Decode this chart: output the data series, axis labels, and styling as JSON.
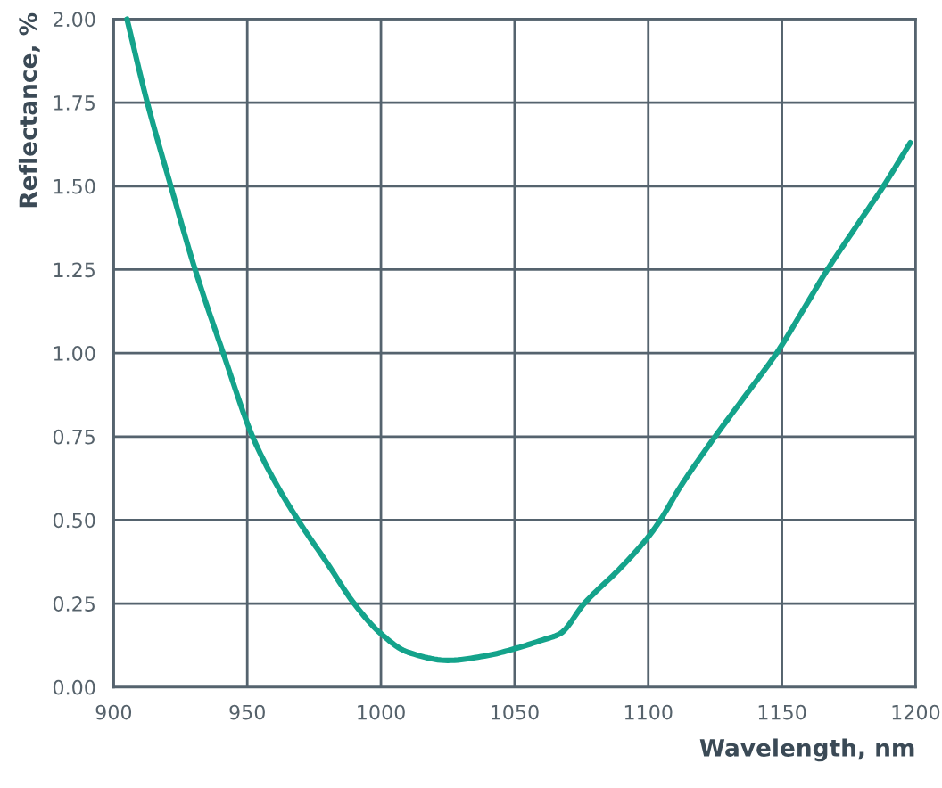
{
  "chart_data": {
    "type": "line",
    "xlabel": "Wavelength, nm",
    "ylabel": "Reflectance, %",
    "x": [
      905,
      912.6,
      921.4,
      930.5,
      941,
      952,
      960,
      969,
      980,
      990,
      1000,
      1010,
      1025,
      1040,
      1050,
      1060,
      1067,
      1076,
      1090,
      1100,
      1104.5,
      1112,
      1125,
      1137,
      1148,
      1158,
      1167,
      1177,
      1188,
      1198
    ],
    "series": [
      {
        "color": "#14a38b",
        "values": [
          2.0,
          1.75,
          1.5,
          1.25,
          1.0,
          0.75,
          0.62,
          0.5,
          0.37,
          0.25,
          0.16,
          0.105,
          0.08,
          0.095,
          0.115,
          0.14,
          0.16,
          0.25,
          0.36,
          0.45,
          0.5,
          0.6,
          0.75,
          0.88,
          1.0,
          1.13,
          1.25,
          1.37,
          1.5,
          1.63
        ]
      }
    ],
    "xlim": [
      900,
      1200
    ],
    "xticks": [
      900,
      950,
      1000,
      1050,
      1100,
      1150,
      1200
    ],
    "ylim": [
      0,
      2.0
    ],
    "yticks": [
      {
        "value": 0,
        "label": "0.00"
      },
      {
        "value": 0.25,
        "label": "0.25"
      },
      {
        "value": 0.5,
        "label": "0.50"
      },
      {
        "value": 0.75,
        "label": "0.75"
      },
      {
        "value": 1.0,
        "label": "1.00"
      },
      {
        "value": 1.25,
        "label": "1.25"
      },
      {
        "value": 1.5,
        "label": "1.50"
      },
      {
        "value": 1.75,
        "label": "1.75"
      },
      {
        "value": 2.0,
        "label": "2.00"
      }
    ],
    "grid": true,
    "legend": false,
    "marker": "none",
    "line_style": "solid"
  }
}
